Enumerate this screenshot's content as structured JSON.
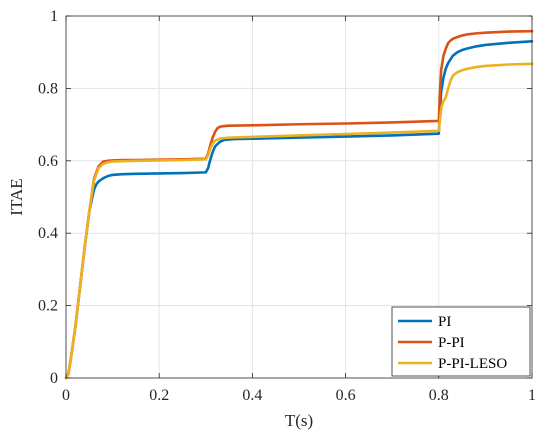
{
  "chart_data": {
    "type": "line",
    "title": "",
    "xlabel": "T(s)",
    "ylabel": "ITAE",
    "xlim": [
      0,
      1
    ],
    "ylim": [
      0,
      1
    ],
    "xticks": [
      "0",
      "0.2",
      "0.4",
      "0.6",
      "0.8",
      "1"
    ],
    "yticks": [
      "0",
      "0.2",
      "0.4",
      "0.6",
      "0.8",
      "1"
    ],
    "grid": true,
    "legend_position": "bottom-right",
    "series": [
      {
        "name": "PI",
        "color": "#0072BD",
        "x": [
          0,
          0.005,
          0.01,
          0.02,
          0.03,
          0.04,
          0.05,
          0.06,
          0.065,
          0.07,
          0.08,
          0.09,
          0.1,
          0.12,
          0.15,
          0.2,
          0.25,
          0.3,
          0.305,
          0.31,
          0.315,
          0.32,
          0.33,
          0.34,
          0.36,
          0.4,
          0.5,
          0.6,
          0.7,
          0.8,
          0.802,
          0.805,
          0.81,
          0.815,
          0.82,
          0.825,
          0.83,
          0.84,
          0.85,
          0.86,
          0.88,
          0.9,
          0.95,
          1.0
        ],
        "y": [
          0,
          0.01,
          0.05,
          0.14,
          0.25,
          0.36,
          0.46,
          0.52,
          0.535,
          0.543,
          0.552,
          0.558,
          0.561,
          0.563,
          0.564,
          0.565,
          0.566,
          0.568,
          0.58,
          0.605,
          0.625,
          0.64,
          0.652,
          0.658,
          0.66,
          0.661,
          0.664,
          0.667,
          0.67,
          0.675,
          0.73,
          0.79,
          0.83,
          0.855,
          0.87,
          0.88,
          0.89,
          0.9,
          0.906,
          0.91,
          0.916,
          0.92,
          0.926,
          0.93
        ]
      },
      {
        "name": "P-PI",
        "color": "#D95319",
        "x": [
          0,
          0.005,
          0.01,
          0.02,
          0.03,
          0.04,
          0.05,
          0.06,
          0.07,
          0.08,
          0.09,
          0.1,
          0.12,
          0.15,
          0.2,
          0.25,
          0.3,
          0.305,
          0.31,
          0.315,
          0.32,
          0.325,
          0.33,
          0.34,
          0.35,
          0.4,
          0.5,
          0.6,
          0.7,
          0.8,
          0.802,
          0.805,
          0.81,
          0.815,
          0.82,
          0.825,
          0.83,
          0.84,
          0.85,
          0.86,
          0.88,
          0.9,
          0.95,
          1.0
        ],
        "y": [
          0,
          0.01,
          0.05,
          0.14,
          0.25,
          0.36,
          0.46,
          0.55,
          0.585,
          0.598,
          0.6,
          0.601,
          0.602,
          0.602,
          0.603,
          0.604,
          0.606,
          0.62,
          0.645,
          0.665,
          0.68,
          0.69,
          0.694,
          0.696,
          0.697,
          0.698,
          0.701,
          0.703,
          0.706,
          0.71,
          0.78,
          0.85,
          0.89,
          0.91,
          0.925,
          0.932,
          0.937,
          0.942,
          0.946,
          0.949,
          0.952,
          0.954,
          0.957,
          0.958
        ]
      },
      {
        "name": "P-PI-LESO",
        "color": "#EDB120",
        "x": [
          0,
          0.005,
          0.01,
          0.02,
          0.03,
          0.04,
          0.05,
          0.06,
          0.07,
          0.08,
          0.09,
          0.1,
          0.12,
          0.15,
          0.2,
          0.25,
          0.3,
          0.305,
          0.31,
          0.315,
          0.32,
          0.33,
          0.34,
          0.35,
          0.4,
          0.5,
          0.6,
          0.7,
          0.8,
          0.803,
          0.806,
          0.81,
          0.815,
          0.82,
          0.825,
          0.83,
          0.84,
          0.85,
          0.86,
          0.88,
          0.9,
          0.95,
          1.0
        ],
        "y": [
          0,
          0.01,
          0.05,
          0.14,
          0.25,
          0.36,
          0.46,
          0.545,
          0.58,
          0.592,
          0.596,
          0.598,
          0.599,
          0.6,
          0.601,
          0.602,
          0.604,
          0.615,
          0.635,
          0.648,
          0.656,
          0.661,
          0.663,
          0.664,
          0.666,
          0.67,
          0.674,
          0.678,
          0.683,
          0.72,
          0.75,
          0.765,
          0.775,
          0.8,
          0.82,
          0.835,
          0.845,
          0.85,
          0.854,
          0.859,
          0.862,
          0.866,
          0.868
        ]
      }
    ]
  }
}
